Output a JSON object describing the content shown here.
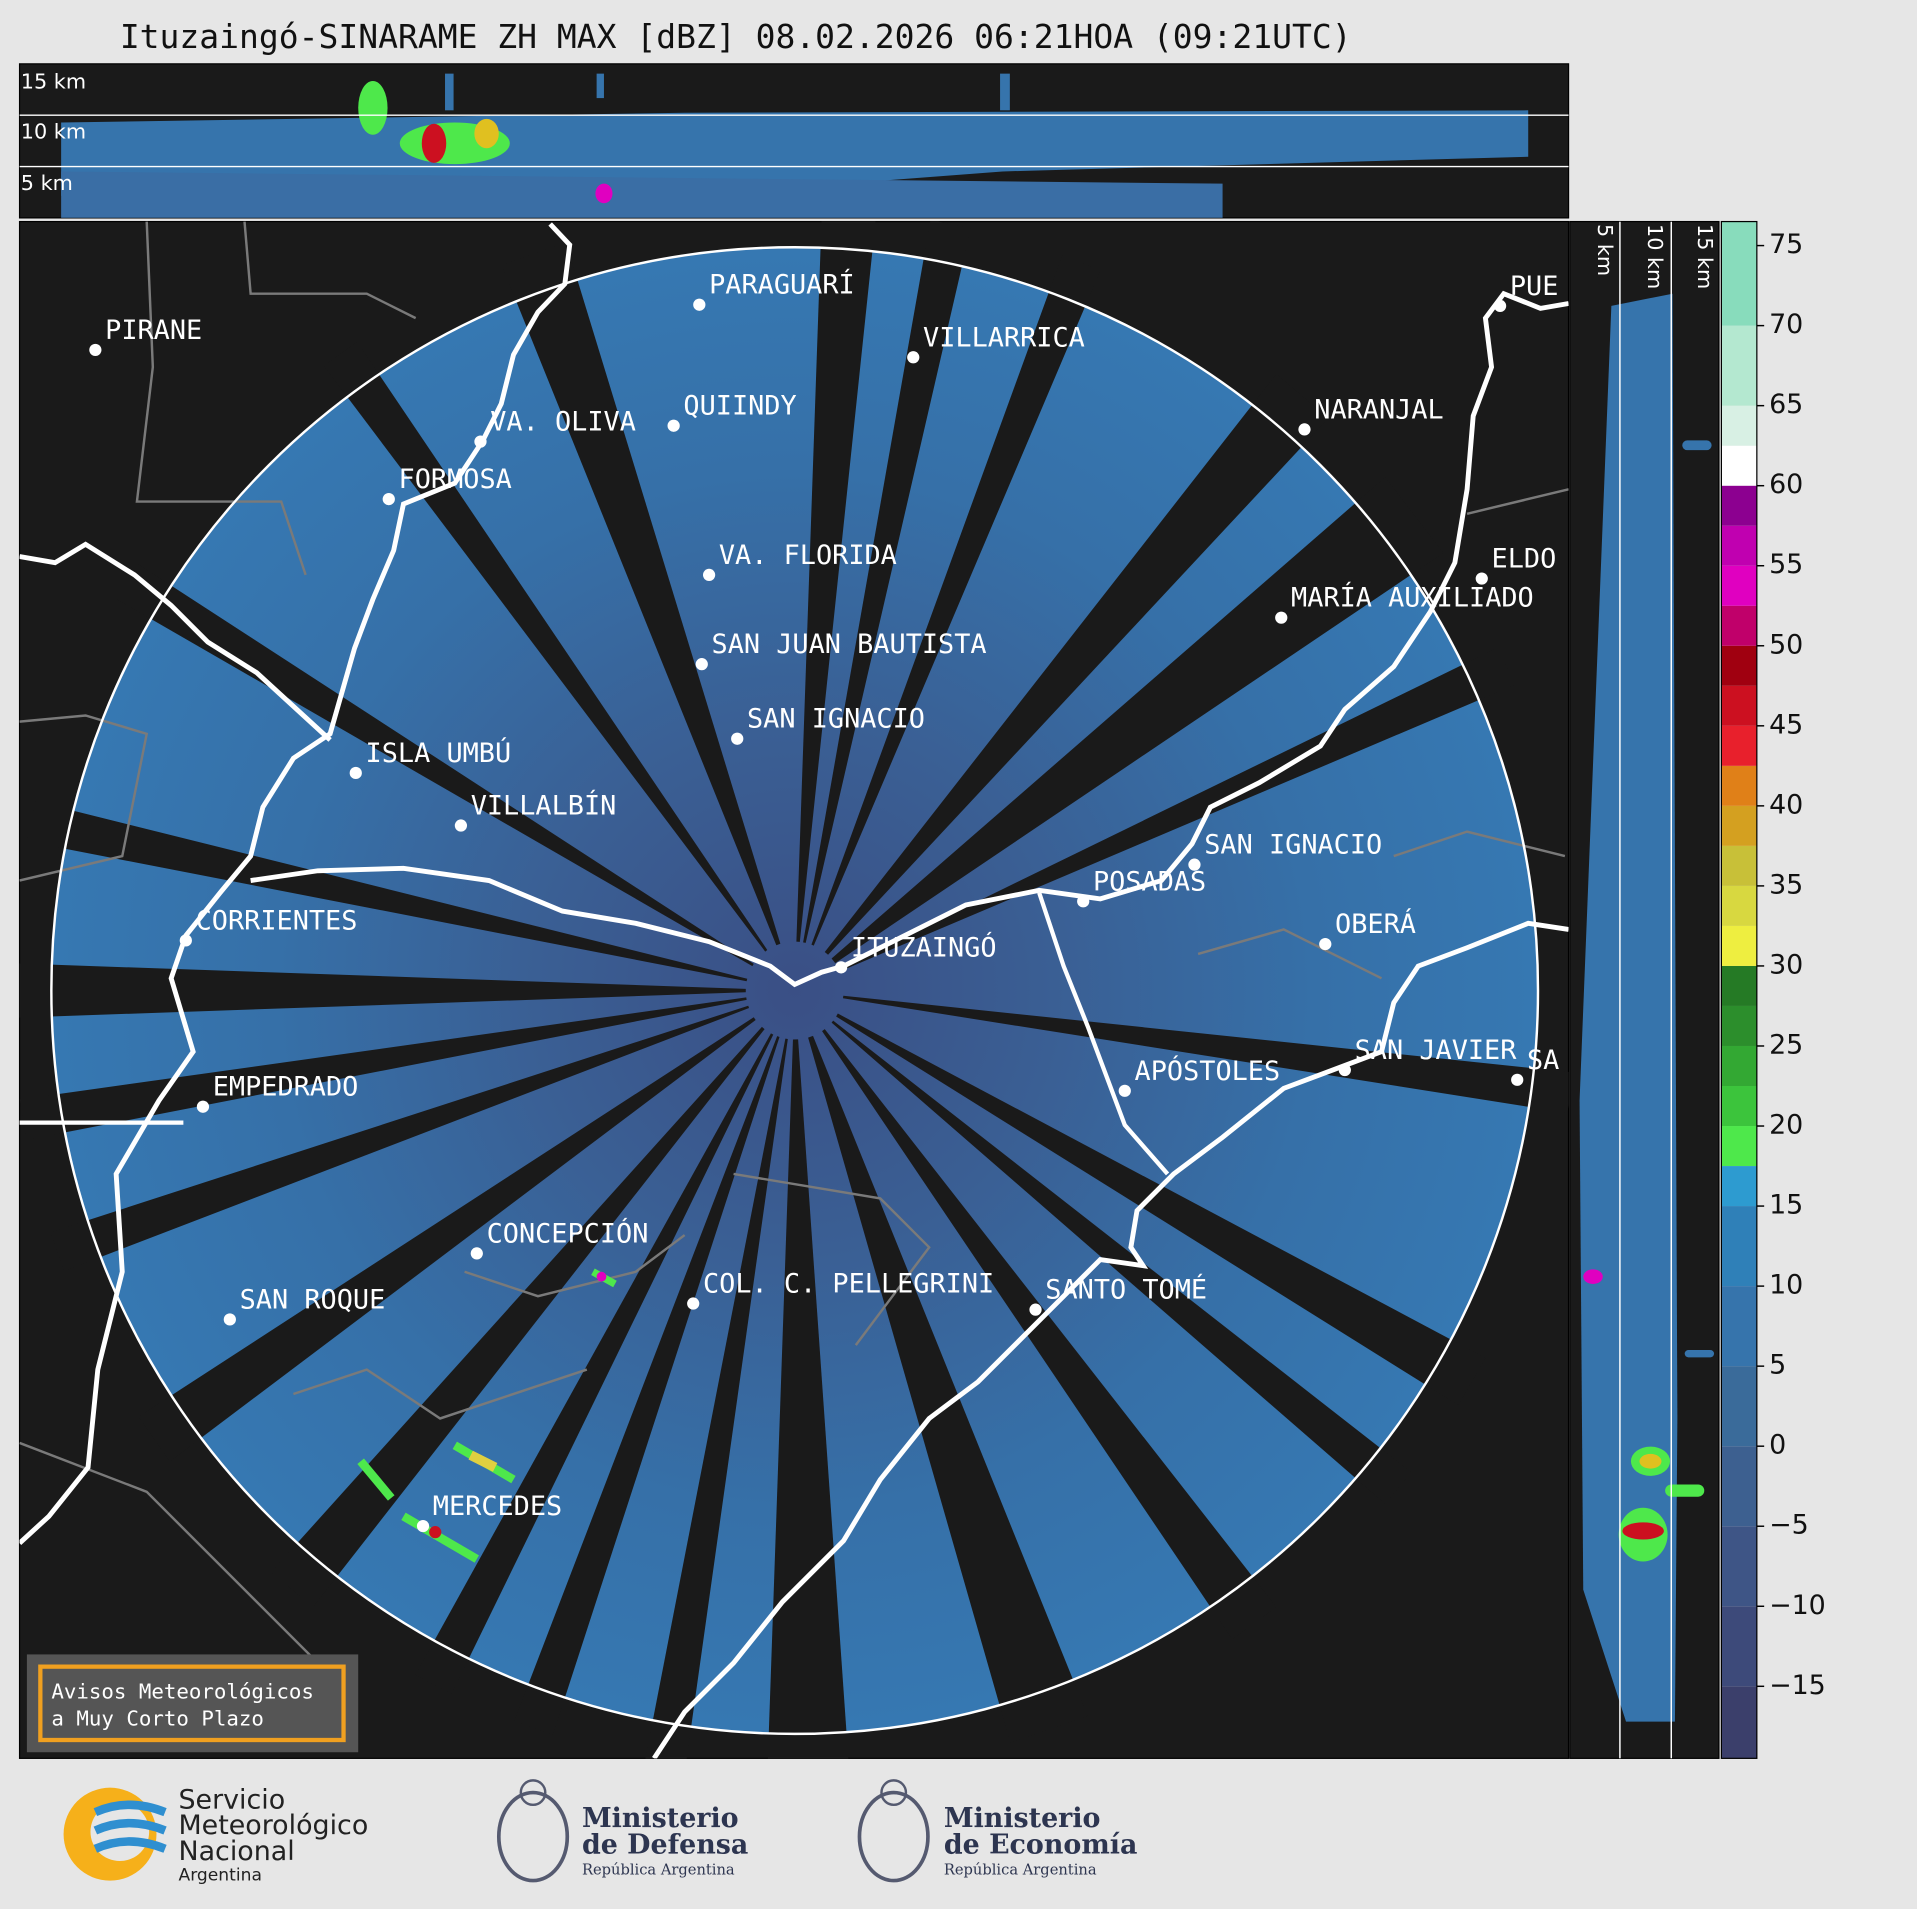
{
  "title": "Ituzaingó-SINARAME ZH MAX [dBZ] 08.02.2026 06:21HOA (09:21UTC)",
  "top_panel": {
    "height_labels": [
      "15 km",
      "10 km",
      "5 km"
    ]
  },
  "side_panel": {
    "height_labels": [
      "5 km",
      "10 km",
      "15 km"
    ]
  },
  "colorbar": {
    "lim": [
      -19.5,
      76.5
    ],
    "ticks": [
      {
        "value": -15,
        "label": "−15"
      },
      {
        "value": -10,
        "label": "−10"
      },
      {
        "value": -5,
        "label": "−5"
      },
      0,
      5,
      10,
      15,
      20,
      25,
      30,
      35,
      40,
      45,
      50,
      55,
      60,
      65,
      70,
      75
    ],
    "bounds": [
      -19.5,
      -15,
      -10,
      -5,
      0,
      5,
      10,
      15,
      17.5,
      20,
      22.5,
      25,
      27.5,
      30,
      32.5,
      35,
      37.5,
      40,
      42.5,
      45,
      47.5,
      50,
      52.5,
      55,
      57.5,
      60,
      62.5,
      65,
      70,
      76.5
    ],
    "colors": [
      "#3b3f6b",
      "#3d4a7a",
      "#3e5586",
      "#3d6090",
      "#3a6b9a",
      "#3674ac",
      "#2f80b8",
      "#2d9bd0",
      "#4ee84b",
      "#3cc43c",
      "#33a833",
      "#2c8e2c",
      "#257a25",
      "#eeee40",
      "#d8d840",
      "#c8c038",
      "#d4a020",
      "#e08018",
      "#e8202c",
      "#cc1020",
      "#a00010",
      "#c0006a",
      "#e000c0",
      "#c000b0",
      "#8c0090",
      "#ffffff",
      "#d8f0e4",
      "#b4e8d0",
      "#88dcbc"
    ]
  },
  "cities": [
    "PIRANE",
    "PARAGUARÍ",
    "VILLARRICA",
    "QUIINDY",
    "VA. OLIVA",
    "NARANJAL",
    "FORMOSA",
    "VA. FLORIDA",
    "ELDO",
    "MARÍA AUXILIADO",
    "SAN JUAN BAUTISTA",
    "SAN IGNACIO",
    "ISLA UMBÚ",
    "VILLALBÍN",
    "SAN IGNACIO",
    "POSADAS",
    "CORRIENTES",
    "ITUZAINGÓ",
    "OBERÁ",
    "APÓSTOLES",
    "SAN JAVIER",
    "SA",
    "EMPEDRADO",
    "CONCEPCIÓN",
    "COL. C. PELLEGRINI",
    "SANTO TOMÉ",
    "SAN ROQUE",
    "MERCEDES",
    "PUE"
  ],
  "notice": {
    "lines": [
      "Avisos Meteorológicos",
      "a Muy Corto Plazo"
    ]
  },
  "logos": {
    "smn": [
      "Servicio",
      "Meteorológico",
      "Nacional",
      "Argentina"
    ],
    "defensa": [
      "Ministerio",
      "de Defensa",
      "República Argentina"
    ],
    "economia": [
      "Ministerio",
      "de Economía",
      "República Argentina"
    ]
  }
}
